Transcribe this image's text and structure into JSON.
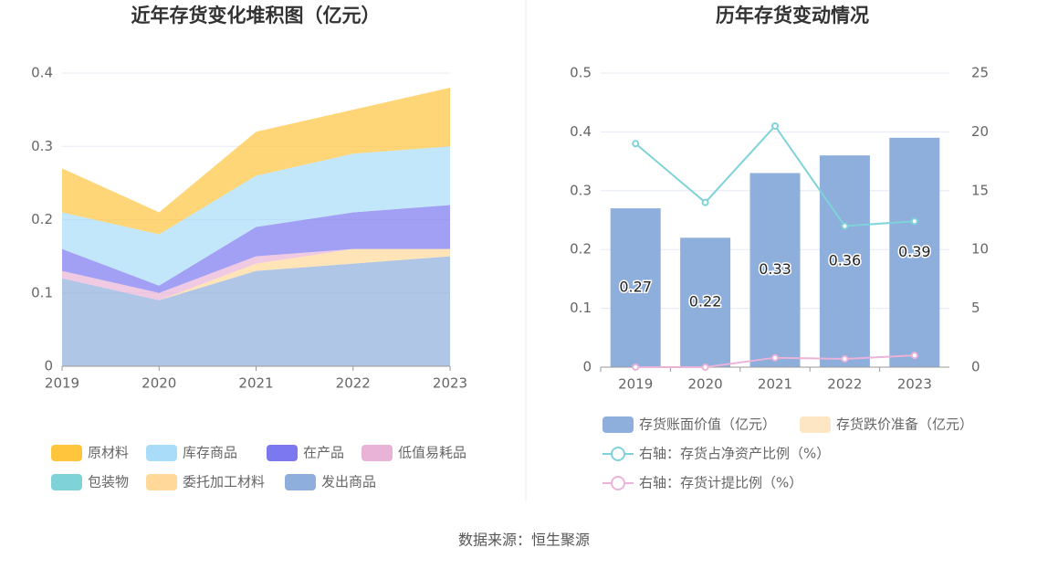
{
  "chart_data": [
    {
      "type": "area",
      "stacked": true,
      "title": "近年存货变化堆积图（亿元）",
      "categories": [
        "2019",
        "2020",
        "2021",
        "2022",
        "2023"
      ],
      "ylim": [
        0,
        0.4
      ],
      "yticks": [
        0,
        0.1,
        0.2,
        0.3,
        0.4
      ],
      "grid": true,
      "series": [
        {
          "name": "原材料",
          "color": "#ffc53d",
          "values": [
            0.06,
            0.03,
            0.06,
            0.06,
            0.08
          ]
        },
        {
          "name": "库存商品",
          "color": "#a8dcf8",
          "values": [
            0.05,
            0.07,
            0.07,
            0.08,
            0.08
          ]
        },
        {
          "name": "在产品",
          "color": "#7b78f0",
          "values": [
            0.03,
            0.01,
            0.04,
            0.05,
            0.06
          ]
        },
        {
          "name": "低值易耗品",
          "color": "#e8b3d6",
          "values": [
            0.01,
            0.01,
            0.01,
            0,
            0
          ]
        },
        {
          "name": "包装物",
          "color": "#7fd3d8",
          "values": [
            0,
            0,
            0,
            0,
            0
          ]
        },
        {
          "name": "委托加工材料",
          "color": "#ffd89a",
          "values": [
            0,
            0,
            0.01,
            0.02,
            0.01
          ]
        },
        {
          "name": "发出商品",
          "color": "#8eaedc",
          "values": [
            0.12,
            0.09,
            0.13,
            0.14,
            0.15
          ]
        }
      ]
    },
    {
      "type": "bar",
      "title": "历年存货变动情况",
      "categories": [
        "2019",
        "2020",
        "2021",
        "2022",
        "2023"
      ],
      "ylim": [
        0,
        0.5
      ],
      "yticks": [
        0,
        0.1,
        0.2,
        0.3,
        0.4,
        0.5
      ],
      "y2lim": [
        0,
        25
      ],
      "y2ticks": [
        0,
        5,
        10,
        15,
        20,
        25
      ],
      "grid": true,
      "series": [
        {
          "name": "存货账面价值（亿元）",
          "type": "bar",
          "color": "#8eaedc",
          "values": [
            0.27,
            0.22,
            0.33,
            0.36,
            0.39
          ]
        },
        {
          "name": "存货跌价准备（亿元）",
          "type": "bar",
          "color": "#fde6c4",
          "values": [
            0,
            0,
            0,
            0,
            0
          ]
        },
        {
          "name": "右轴：存货占净资产比例（%）",
          "type": "line",
          "axis": "y2",
          "color": "#7fd3d8",
          "values": [
            19,
            14,
            20.5,
            12,
            12.4
          ]
        },
        {
          "name": "右轴：存货计提比例（%）",
          "type": "line",
          "axis": "y2",
          "color": "#eab3d8",
          "values": [
            0,
            0,
            0.8,
            0.7,
            1.0
          ]
        }
      ]
    }
  ],
  "source": "数据来源：恒生聚源"
}
